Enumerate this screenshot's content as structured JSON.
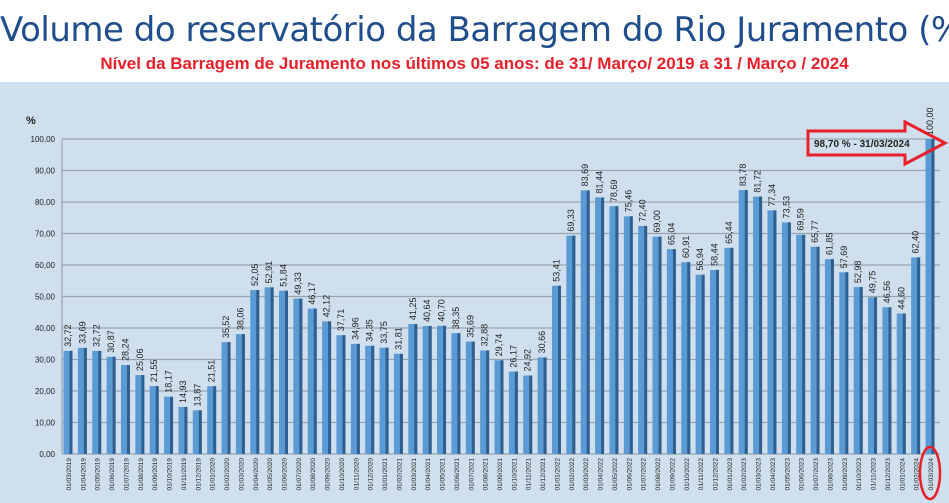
{
  "chart_data": {
    "type": "bar",
    "title": "Volume do reservatório da Barragem do Rio Juramento (%)",
    "subtitle": "Nível da Barragem de Juramento nos últimos 05 anos:  de  31/ Março/ 2019 a 31 / Março / 2024",
    "ylabel": "%",
    "xlabel": "",
    "ylim": [
      0,
      100
    ],
    "yticks": [
      "0,00",
      "10,00",
      "20,00",
      "30,00",
      "40,00",
      "50,00",
      "60,00",
      "70,00",
      "80,00",
      "90,00",
      "100,00"
    ],
    "grid": true,
    "categories": [
      "01/03/2019",
      "01/04/2019",
      "01/05/2019",
      "01/06/2019",
      "01/07/2019",
      "01/08/2019",
      "01/09/2019",
      "01/10/2019",
      "01/11/2019",
      "01/12/2019",
      "01/01/2020",
      "01/02/2020",
      "01/03/2020",
      "01/04/2020",
      "01/05/2020",
      "01/06/2020",
      "01/07/2020",
      "01/08/2020",
      "01/09/2020",
      "01/10/2020",
      "01/11/2020",
      "01/12/2020",
      "01/01/2021",
      "01/02/2021",
      "01/03/2021",
      "01/04/2021",
      "01/05/2021",
      "01/06/2021",
      "01/07/2021",
      "01/08/2021",
      "01/09/2021",
      "01/10/2021",
      "01/11/2021",
      "01/12/2021",
      "01/01/2022",
      "01/02/2022",
      "01/03/2022",
      "01/04/2022",
      "01/05/2022",
      "01/06/2022",
      "01/07/2022",
      "01/08/2022",
      "01/09/2022",
      "01/10/2022",
      "01/11/2022",
      "01/12/2022",
      "01/01/2023",
      "01/02/2023",
      "01/03/2023",
      "01/04/2023",
      "01/05/2023",
      "01/06/2023",
      "01/07/2023",
      "01/08/2023",
      "01/09/2023",
      "01/10/2023",
      "01/11/2023",
      "01/12/2023",
      "01/01/2024",
      "01/02/2024",
      "01/03/2024"
    ],
    "values": [
      32.72,
      33.69,
      32.72,
      30.87,
      28.24,
      25.06,
      21.55,
      18.17,
      14.93,
      13.87,
      21.51,
      35.52,
      38.06,
      52.05,
      52.91,
      51.84,
      49.33,
      46.17,
      42.12,
      37.71,
      34.96,
      34.35,
      33.75,
      31.81,
      41.25,
      40.64,
      40.7,
      38.35,
      35.69,
      32.88,
      29.74,
      26.17,
      24.92,
      30.66,
      53.41,
      69.33,
      83.69,
      81.44,
      78.69,
      75.46,
      72.4,
      69.0,
      65.04,
      60.91,
      56.94,
      58.44,
      65.44,
      83.78,
      81.72,
      77.34,
      73.53,
      69.59,
      65.77,
      61.85,
      57.69,
      52.98,
      49.75,
      46.56,
      44.6,
      62.4,
      100.0
    ],
    "data_labels": [
      "32,72",
      "33,69",
      "32,72",
      "30,87",
      "28,24",
      "25,06",
      "21,55",
      "18,17",
      "14,93",
      "13,87",
      "21,51",
      "35,52",
      "38,06",
      "52,05",
      "52,91",
      "51,84",
      "49,33",
      "46,17",
      "42,12",
      "37,71",
      "34,96",
      "34,35",
      "33,75",
      "31,81",
      "41,25",
      "40,64",
      "40,70",
      "38,35",
      "35,69",
      "32,88",
      "29,74",
      "26,17",
      "24,92",
      "30,66",
      "53,41",
      "69,33",
      "83,69",
      "81,44",
      "78,69",
      "75,46",
      "72,40",
      "69,00",
      "65,04",
      "60,91",
      "56,94",
      "58,44",
      "65,44",
      "83,78",
      "81,72",
      "77,34",
      "73,53",
      "69,59",
      "65,77",
      "61,85",
      "57,69",
      "52,98",
      "49,75",
      "46,56",
      "44,60",
      "62,40",
      "100,00"
    ],
    "annotation": {
      "text": "98,70 % - 31/03/2024",
      "target": "01/03/2024"
    },
    "colors": {
      "bar": "#5b9bd5",
      "bar_side": "#2e5f8e",
      "panel": "#cfdfee",
      "highlight": "#e8202a",
      "title": "#1f4e8c"
    }
  }
}
